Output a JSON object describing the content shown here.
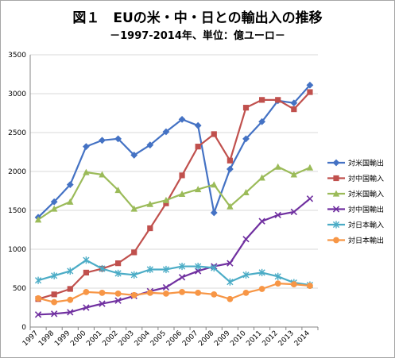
{
  "chart_data": {
    "type": "line",
    "title": "図１　EUの米・中・日との輸出入の推移",
    "subtitle": "－1997-2014年、単位：億ユーロ－",
    "x": [
      "1997",
      "1998",
      "1999",
      "2000",
      "2001",
      "2002",
      "2003",
      "2004",
      "2005",
      "2006",
      "2007",
      "2008",
      "2009",
      "2010",
      "2011",
      "2012",
      "2013",
      "2014"
    ],
    "ylim": [
      0,
      3500
    ],
    "yticks": [
      0,
      500,
      1000,
      1500,
      2000,
      2500,
      3000,
      3500
    ],
    "grid": true,
    "legend_position": "right",
    "series": [
      {
        "name": "対米国輸出",
        "color": "#4472c4",
        "marker": "diamond",
        "values": [
          1410,
          1610,
          1830,
          2320,
          2400,
          2420,
          2210,
          2340,
          2510,
          2670,
          2590,
          1470,
          2030,
          2420,
          2640,
          2910,
          2880,
          3110
        ]
      },
      {
        "name": "対中国輸入",
        "color": "#c0504d",
        "marker": "square",
        "values": [
          360,
          420,
          490,
          700,
          750,
          820,
          960,
          1270,
          1590,
          1950,
          2320,
          2480,
          2140,
          2820,
          2920,
          2920,
          2800,
          3020
        ]
      },
      {
        "name": "対米国輸入",
        "color": "#9bbb59",
        "marker": "triangle",
        "values": [
          1380,
          1520,
          1610,
          1990,
          1960,
          1760,
          1520,
          1580,
          1630,
          1710,
          1770,
          1830,
          1550,
          1730,
          1920,
          2060,
          1960,
          2050
        ]
      },
      {
        "name": "対中国輸出",
        "color": "#7030a0",
        "marker": "x",
        "values": [
          160,
          170,
          190,
          250,
          300,
          340,
          400,
          460,
          510,
          640,
          720,
          780,
          820,
          1130,
          1360,
          1440,
          1480,
          1650
        ]
      },
      {
        "name": "対日本輸入",
        "color": "#4bacc6",
        "marker": "star",
        "values": [
          600,
          660,
          720,
          860,
          750,
          690,
          670,
          740,
          740,
          780,
          780,
          760,
          580,
          670,
          700,
          650,
          570,
          540
        ]
      },
      {
        "name": "対日本輸出",
        "color": "#f79646",
        "marker": "circle",
        "values": [
          370,
          320,
          350,
          450,
          440,
          430,
          410,
          440,
          430,
          450,
          440,
          420,
          360,
          440,
          490,
          560,
          550,
          530
        ]
      }
    ]
  }
}
